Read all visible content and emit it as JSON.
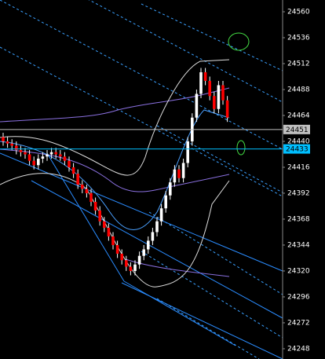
{
  "chart_data": {
    "type": "candlestick",
    "open": [
      24444,
      24440,
      24438,
      24436,
      24432,
      24430,
      24428,
      24422,
      24418,
      24424,
      24426,
      24428,
      24430,
      24428,
      24426,
      24422,
      24416,
      24410,
      24400,
      24396,
      24392,
      24384,
      24376,
      24366,
      24360,
      24352,
      24344,
      24336,
      24330,
      24324,
      24320,
      24326,
      24334,
      24340,
      24348,
      24356,
      24366,
      24378,
      24390,
      24402,
      24414,
      24406,
      24420,
      24440,
      24462,
      24484,
      24504,
      24496,
      24482,
      24470,
      24492,
      24478
    ],
    "high": [
      24448,
      24444,
      24442,
      24440,
      24436,
      24434,
      24432,
      24426,
      24428,
      24430,
      24432,
      24434,
      24434,
      24432,
      24430,
      24426,
      24420,
      24414,
      24404,
      24400,
      24396,
      24388,
      24380,
      24370,
      24364,
      24356,
      24348,
      24340,
      24334,
      24328,
      24330,
      24338,
      24344,
      24352,
      24360,
      24370,
      24382,
      24394,
      24406,
      24418,
      24418,
      24424,
      24444,
      24466,
      24488,
      24508,
      24508,
      24500,
      24486,
      24496,
      24496,
      24482
    ],
    "low": [
      24436,
      24434,
      24432,
      24428,
      24426,
      24424,
      24418,
      24414,
      24414,
      24420,
      24422,
      24424,
      24424,
      24422,
      24418,
      24412,
      24406,
      24396,
      24392,
      24388,
      24380,
      24372,
      24362,
      24356,
      24348,
      24340,
      24332,
      24326,
      24320,
      24316,
      24316,
      24322,
      24330,
      24336,
      24344,
      24352,
      24362,
      24374,
      24386,
      24398,
      24402,
      24402,
      24416,
      24436,
      24458,
      24480,
      24492,
      24478,
      24466,
      24466,
      24474,
      24458
    ],
    "close": [
      24440,
      24438,
      24436,
      24432,
      24430,
      24428,
      24422,
      24418,
      24424,
      24426,
      24428,
      24430,
      24428,
      24426,
      24422,
      24416,
      24410,
      24400,
      24396,
      24392,
      24384,
      24376,
      24366,
      24360,
      24352,
      24344,
      24336,
      24330,
      24324,
      24320,
      24326,
      24334,
      24340,
      24348,
      24356,
      24366,
      24378,
      24390,
      24402,
      24414,
      24406,
      24420,
      24440,
      24462,
      24484,
      24504,
      24496,
      24482,
      24470,
      24492,
      24478,
      24462
    ],
    "up_color": "#ffffff",
    "down_color": "#ff0000",
    "ylim": [
      24238.5,
      24570.9
    ],
    "yticks": [
      24560,
      24536,
      24512,
      24488,
      24464,
      24440,
      24416,
      24392,
      24368,
      24344,
      24320,
      24296,
      24272,
      24248
    ],
    "price_lines": [
      {
        "value": 24451,
        "color": "#c0c0c0"
      },
      {
        "value": 24433,
        "color": "#00bfff"
      }
    ]
  }
}
